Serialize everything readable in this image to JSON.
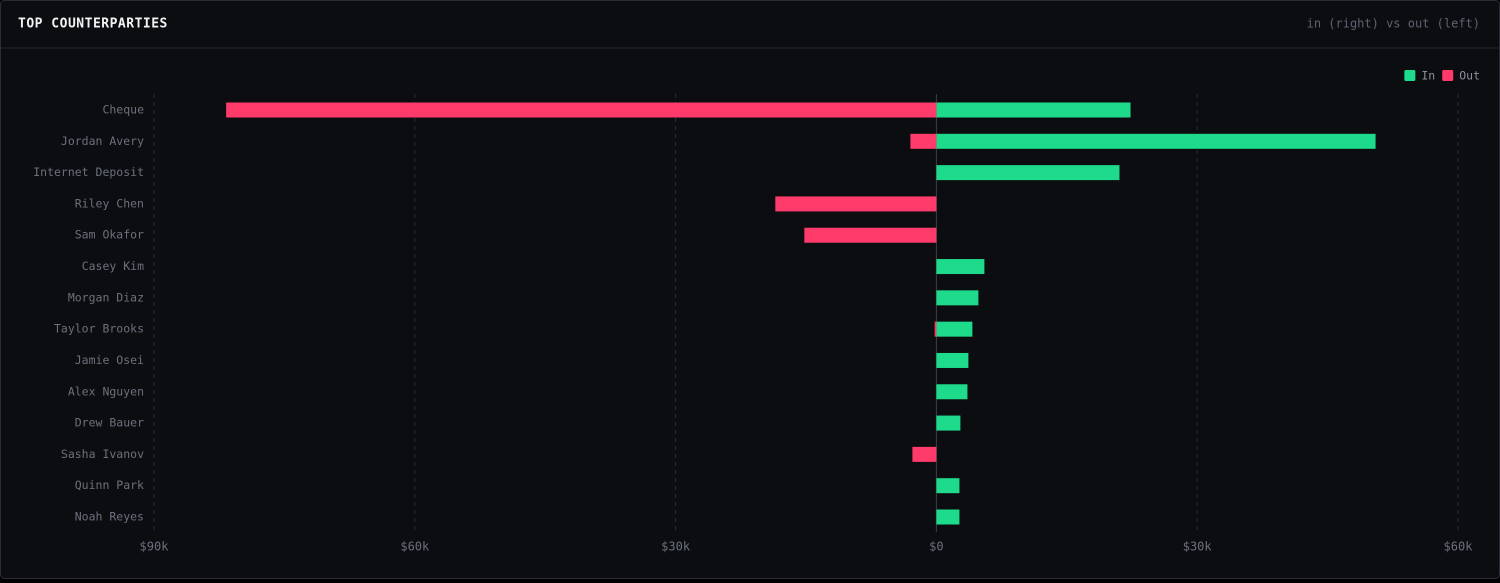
{
  "chart_data": {
    "type": "diverging-bar",
    "title": "TOP COUNTERPARTIES",
    "subtitle": "in (right) vs out (left)",
    "categories": [
      "Cheque",
      "Jordan Avery",
      "Internet Deposit",
      "Riley Chen",
      "Sam Okafor",
      "Casey Kim",
      "Morgan Diaz",
      "Taylor Brooks",
      "Jamie Osei",
      "Alex Nguyen",
      "Drew Bauer",
      "Sasha Ivanov",
      "Quinn Park",
      "Noah Reyes"
    ],
    "series": [
      {
        "name": "In",
        "color": "#1ddb8b",
        "values": [
          22330,
          50520,
          21060,
          0,
          0,
          5520,
          4830,
          4140,
          3680,
          3570,
          2760,
          0,
          2650,
          2650
        ]
      },
      {
        "name": "Out",
        "color": "#ff3b6b",
        "values": [
          -81700,
          -2990,
          0,
          -18530,
          -15190,
          0,
          0,
          -200,
          0,
          0,
          0,
          -2760,
          0,
          0
        ]
      }
    ],
    "xlim": [
      -90000,
      60000
    ],
    "xticks": [
      {
        "value": -90000,
        "label": "$90k"
      },
      {
        "value": -60000,
        "label": "$60k"
      },
      {
        "value": -30000,
        "label": "$30k"
      },
      {
        "value": 0,
        "label": "$0"
      },
      {
        "value": 30000,
        "label": "$30k"
      },
      {
        "value": 60000,
        "label": "$60k"
      }
    ],
    "grid": true,
    "legend": "top-right"
  }
}
